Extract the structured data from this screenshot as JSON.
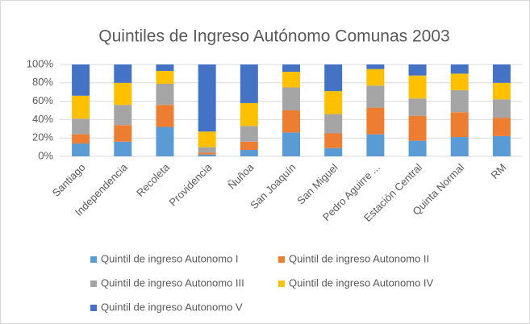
{
  "chart_data": {
    "type": "stacked_bar_100",
    "title": "Quintiles de Ingreso Autónomo Comunas 2003",
    "categories": [
      "Santiago",
      "Independencia",
      "Recoleta",
      "Providencia",
      "Ñuñoa",
      "San Joaquín",
      "San Miguel",
      "Pedro Aguirre ...",
      "Estación Central",
      "Quinta Normal",
      "RM"
    ],
    "series": [
      {
        "name": "Quintil de ingreso Autonomo I",
        "color": "#5b9bd5",
        "values": [
          14,
          16,
          32,
          2,
          7,
          26,
          9,
          24,
          17,
          21,
          22
        ]
      },
      {
        "name": "Quintil de ingreso Autonomo II",
        "color": "#ed7d31",
        "values": [
          10,
          18,
          24,
          2,
          9,
          24,
          16,
          29,
          27,
          27,
          20
        ]
      },
      {
        "name": "Quintil de ingreso Autonomo III",
        "color": "#a5a5a5",
        "values": [
          17,
          22,
          23,
          6,
          17,
          25,
          21,
          24,
          19,
          24,
          20
        ]
      },
      {
        "name": "Quintil de ingreso Autonomo IV",
        "color": "#ffc000",
        "values": [
          25,
          24,
          14,
          17,
          25,
          17,
          25,
          18,
          25,
          18,
          18
        ]
      },
      {
        "name": "Quintil de ingreso Autonomo V",
        "color": "#4472c4",
        "values": [
          34,
          20,
          7,
          73,
          42,
          8,
          29,
          5,
          12,
          10,
          20
        ]
      }
    ],
    "ylim": [
      0,
      100
    ],
    "yticks": [
      {
        "value": 0,
        "label": "0%"
      },
      {
        "value": 20,
        "label": "20%"
      },
      {
        "value": 40,
        "label": "40%"
      },
      {
        "value": 60,
        "label": "60%"
      },
      {
        "value": 80,
        "label": "80%"
      },
      {
        "value": 100,
        "label": "100%"
      }
    ],
    "grid": true,
    "legend": "bottom"
  }
}
